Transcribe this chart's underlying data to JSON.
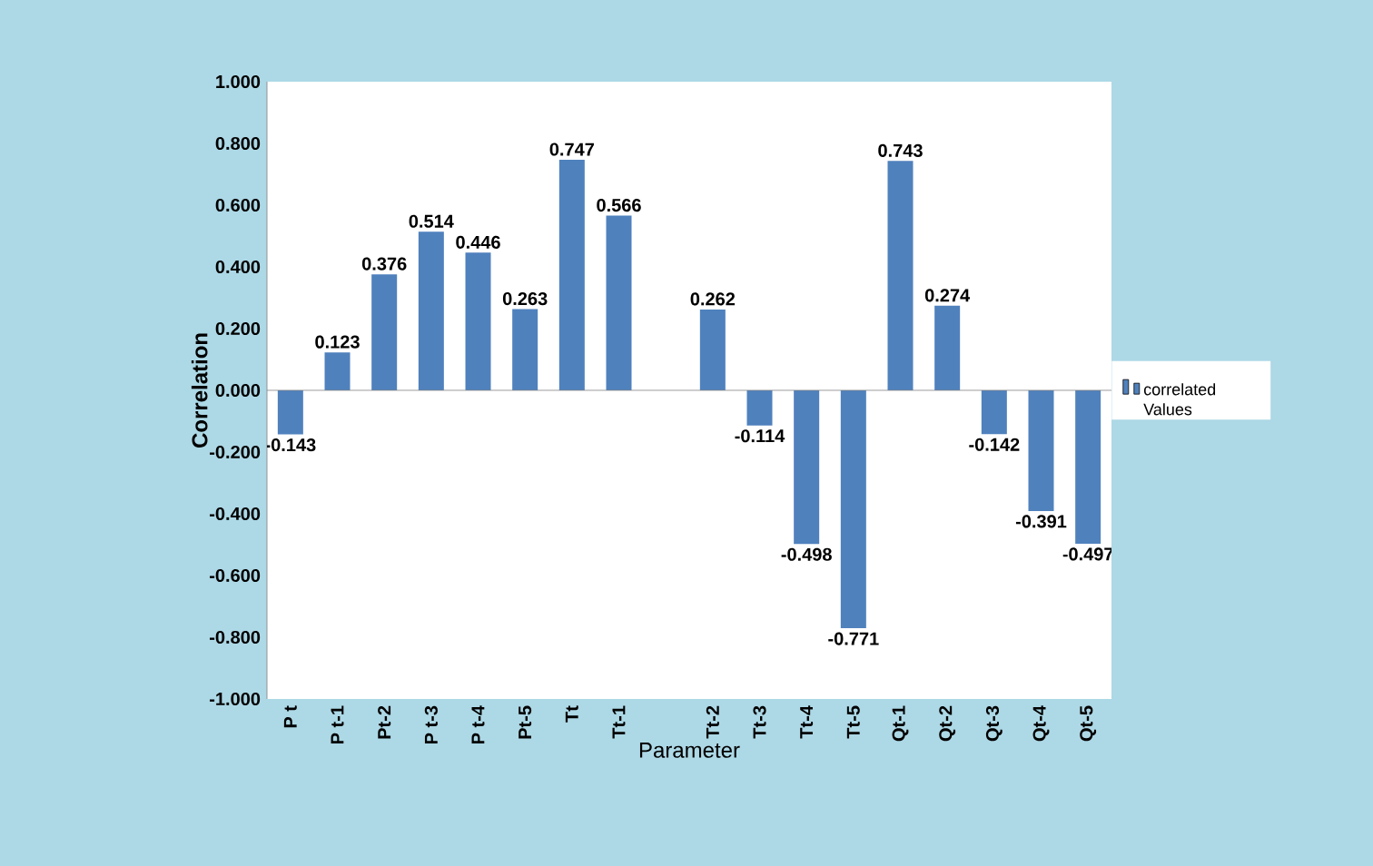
{
  "chart_data": {
    "type": "bar",
    "xlabel": "Parameter",
    "ylabel": "Correlation",
    "categories": [
      "P t",
      "P t-1",
      "Pt-2",
      "P t-3",
      "P t-4",
      "Pt-5",
      "Tt",
      "Tt-1",
      null,
      "Tt-2",
      "Tt-3",
      "Tt-4",
      "Tt-5",
      "Qt-1",
      "Qt-2",
      "Qt-3",
      "Qt-4",
      "Qt-5"
    ],
    "series": [
      {
        "name": "correlated Values",
        "color": "#4f81bd",
        "values": [
          -0.143,
          0.123,
          0.376,
          0.514,
          0.446,
          0.263,
          0.747,
          0.566,
          null,
          0.262,
          -0.114,
          -0.498,
          -0.771,
          0.743,
          0.274,
          -0.142,
          -0.391,
          -0.497
        ]
      }
    ],
    "ylim": [
      -1,
      1
    ],
    "yticks": [
      {
        "value": -1,
        "label": "-1.000"
      },
      {
        "value": -0.8,
        "label": "-0.800"
      },
      {
        "value": -0.6,
        "label": "-0.600"
      },
      {
        "value": -0.4,
        "label": "-0.400"
      },
      {
        "value": -0.2,
        "label": "-0.200"
      },
      {
        "value": 0,
        "label": "0.000"
      },
      {
        "value": 0.2,
        "label": "0.200"
      },
      {
        "value": 0.4,
        "label": "0.400"
      },
      {
        "value": 0.6,
        "label": "0.600"
      },
      {
        "value": 0.8,
        "label": "0.800"
      },
      {
        "value": 1,
        "label": "1.000"
      }
    ],
    "data_labels": true,
    "legend": "right"
  }
}
